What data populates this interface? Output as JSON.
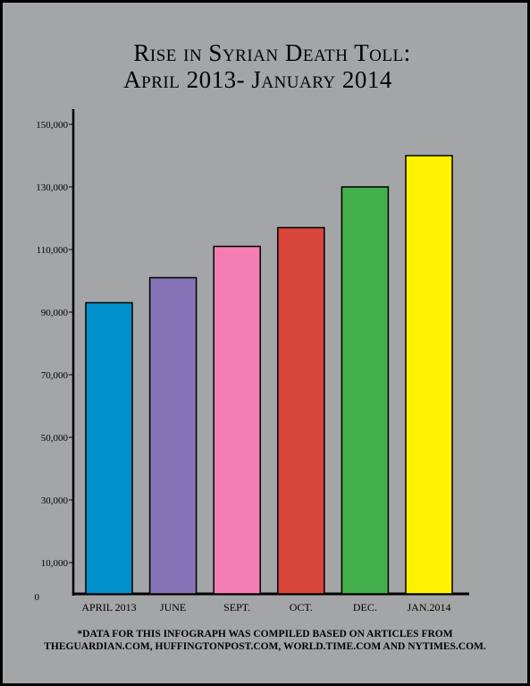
{
  "title_line1": "Rise in Syrian Death Toll:",
  "title_line2": "April 2013- January 2014",
  "footnote_line1": "*Data for this infograph was compiled based on articles from",
  "footnote_line2": "theguardian.com, huffingtonpost.com, world.time.com and nytimes.com.",
  "chart_data": {
    "type": "bar",
    "title": "Rise in Syrian Death Toll: April 2013- January 2014",
    "xlabel": "",
    "ylabel": "",
    "categories": [
      "April 2013",
      "June",
      "Sept.",
      "Oct.",
      "Dec.",
      "Jan.2014"
    ],
    "values": [
      93000,
      101000,
      111000,
      117000,
      130000,
      140000
    ],
    "colors": [
      "#0190cc",
      "#8672b6",
      "#f47eb3",
      "#d9463b",
      "#43ae4c",
      "#fff200"
    ],
    "y_ticks": [
      0,
      10000,
      30000,
      50000,
      70000,
      90000,
      110000,
      130000,
      150000
    ],
    "y_tick_labels": [
      "0",
      "10,000",
      "30,000",
      "50,000",
      "70,000",
      "90,000",
      "110,000",
      "130,000",
      "150,000"
    ],
    "ylim": [
      0,
      150000
    ],
    "grid": false,
    "legend": "none"
  }
}
